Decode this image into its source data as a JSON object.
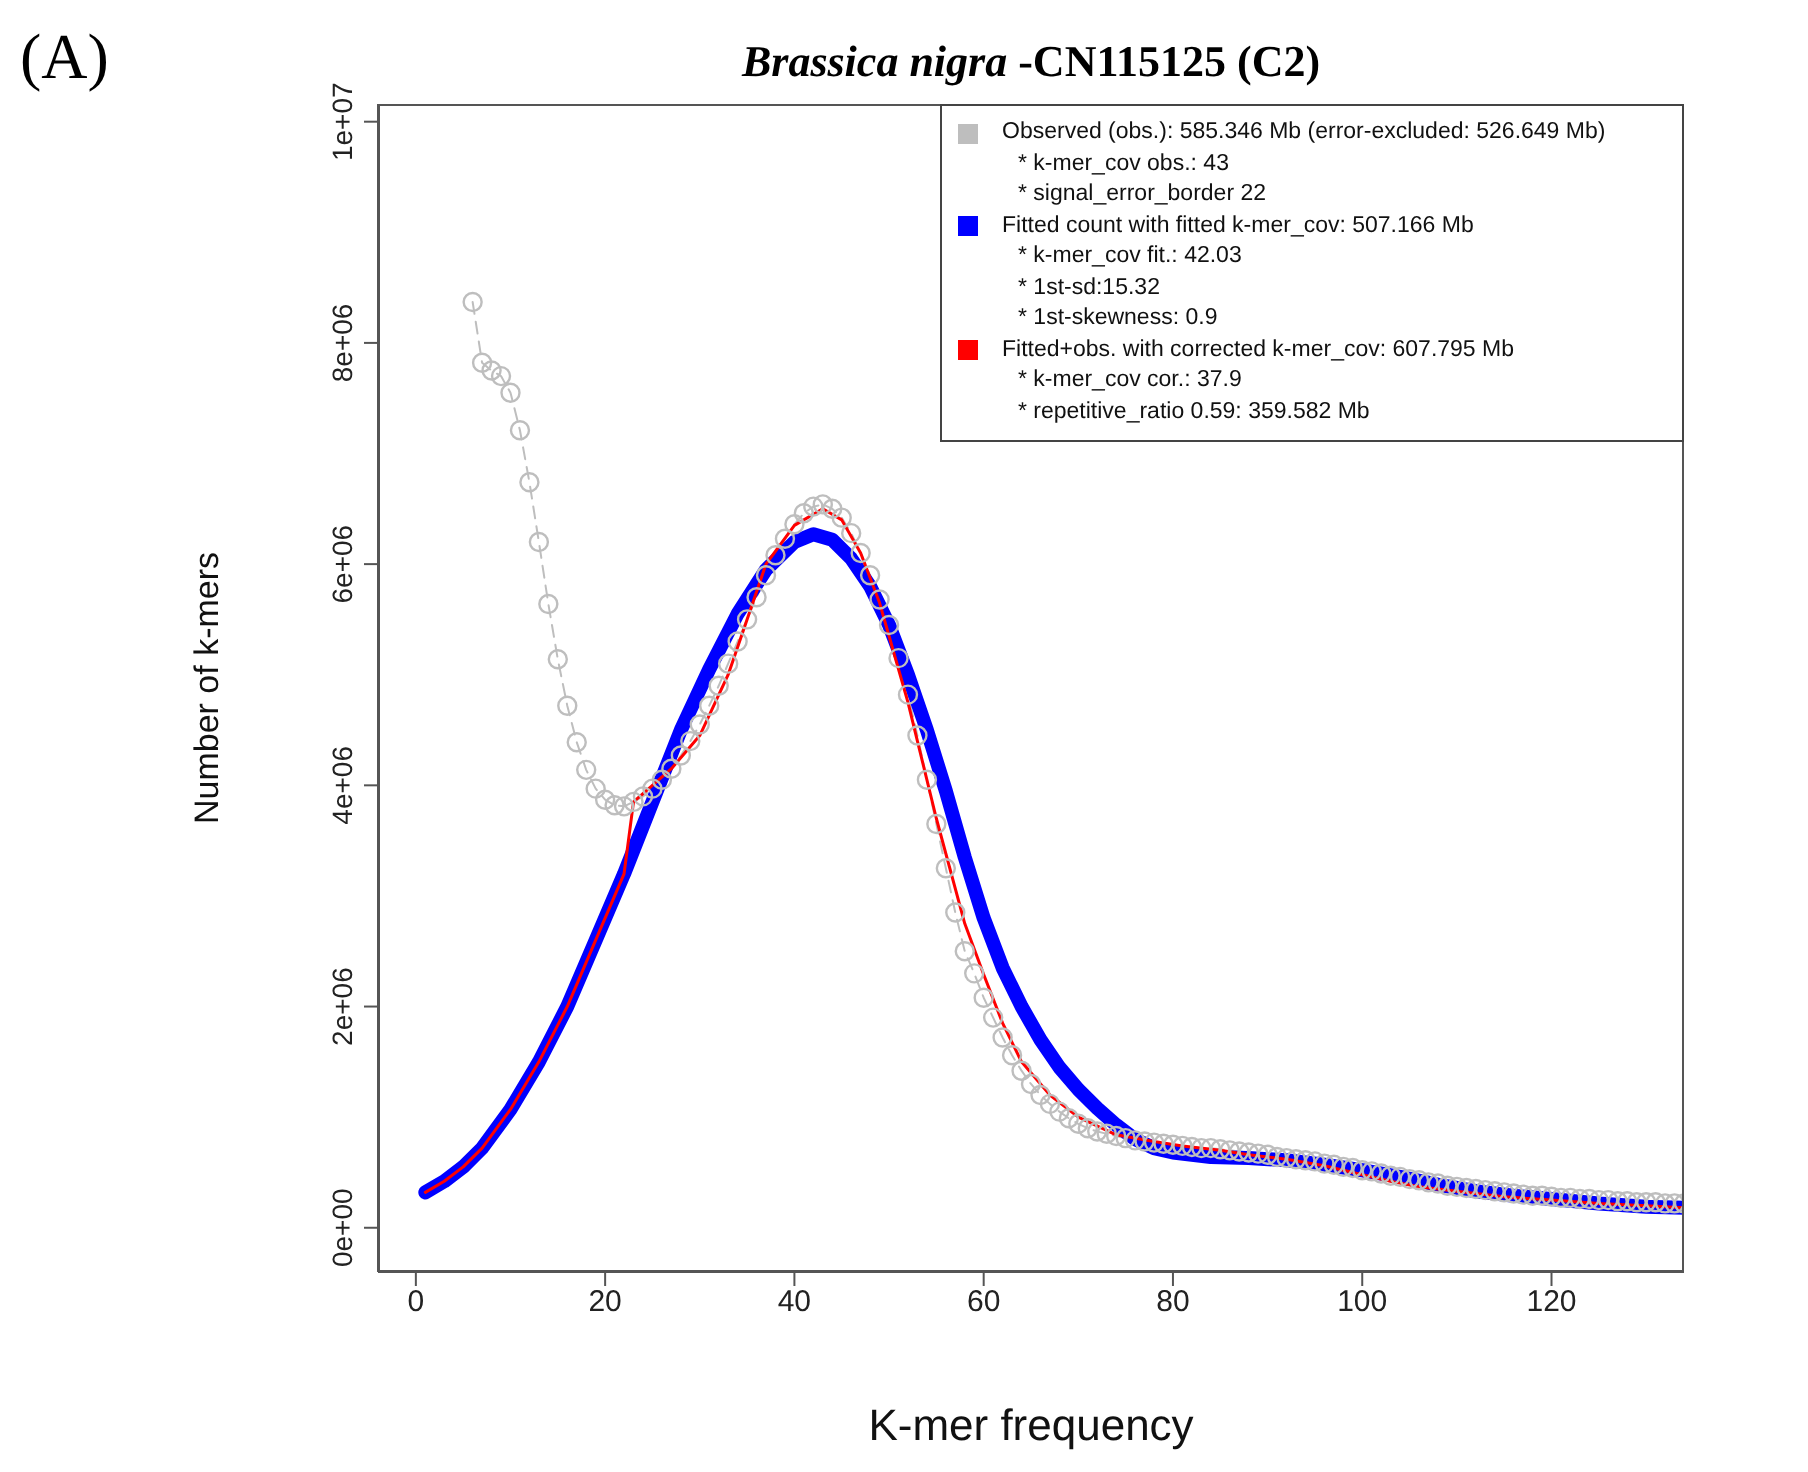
{
  "chart_data": {
    "type": "line",
    "title": "Brassica nigra -CN115125 (C2)",
    "xlabel": "K-mer frequency",
    "ylabel": "Number of k-mers",
    "annotations": [
      "(A)"
    ],
    "xlim": [
      -4,
      134
    ],
    "xticks": [
      0,
      20,
      40,
      60,
      80,
      100,
      120
    ],
    "ylim": [
      -400000,
      10160000
    ],
    "yticks": [
      {
        "value": 0,
        "label": "0e+00"
      },
      {
        "value": 2000000,
        "label": "2e+06"
      },
      {
        "value": 4000000,
        "label": "4e+06"
      },
      {
        "value": 6000000,
        "label": "6e+06"
      },
      {
        "value": 8000000,
        "label": "8e+06"
      },
      {
        "value": 10000000,
        "label": "1e+07"
      }
    ],
    "grid": false,
    "legend": "top right",
    "series": [
      {
        "name": "Observed (obs.): 585.346 Mb (error-excluded: 526.649 Mb)\n* k-mer_cov obs.: 43\n* signal_error_border 22",
        "color": "#bebebe",
        "marker": "circle",
        "line_style": "dashed",
        "x": [
          6,
          7,
          8,
          9,
          10,
          11,
          12,
          13,
          14,
          15,
          16,
          17,
          18,
          19,
          20,
          21,
          22,
          23,
          24,
          25,
          26,
          27,
          28,
          29,
          30,
          31,
          32,
          33,
          34,
          35,
          36,
          37,
          38,
          39,
          40,
          41,
          42,
          43,
          44,
          45,
          46,
          47,
          48,
          49,
          50,
          51,
          52,
          53,
          54,
          55,
          56,
          57,
          58,
          59,
          60,
          61,
          62,
          63,
          64,
          65,
          66,
          67,
          68,
          69,
          70,
          71,
          72,
          73,
          74,
          75,
          76,
          77,
          78,
          79,
          80,
          81,
          82,
          83,
          84,
          85,
          86,
          87,
          88,
          89,
          90,
          91,
          92,
          93,
          94,
          95,
          96,
          97,
          98,
          99,
          100,
          101,
          102,
          103,
          104,
          105,
          106,
          107,
          108,
          109,
          110,
          111,
          112,
          113,
          114,
          115,
          116,
          117,
          118,
          119,
          120,
          121,
          122,
          123,
          124,
          125,
          126,
          127,
          128,
          129,
          130,
          131,
          132,
          133,
          134
        ],
        "values": [
          8370000,
          7820000,
          7750000,
          7700000,
          7550000,
          7210000,
          6740000,
          6200000,
          5640000,
          5140000,
          4720000,
          4390000,
          4140000,
          3970000,
          3870000,
          3820000,
          3810000,
          3850000,
          3900000,
          3970000,
          4050000,
          4150000,
          4270000,
          4400000,
          4550000,
          4720000,
          4900000,
          5100000,
          5300000,
          5500000,
          5700000,
          5900000,
          6080000,
          6230000,
          6360000,
          6460000,
          6520000,
          6540000,
          6500000,
          6420000,
          6280000,
          6100000,
          5900000,
          5680000,
          5450000,
          5150000,
          4820000,
          4450000,
          4050000,
          3650000,
          3250000,
          2850000,
          2500000,
          2300000,
          2080000,
          1900000,
          1720000,
          1560000,
          1420000,
          1300000,
          1200000,
          1120000,
          1050000,
          990000,
          940000,
          900000,
          870000,
          850000,
          830000,
          810000,
          790000,
          780000,
          770000,
          760000,
          750000,
          740000,
          730000,
          720000,
          720000,
          710000,
          700000,
          690000,
          680000,
          670000,
          660000,
          640000,
          630000,
          620000,
          610000,
          600000,
          580000,
          570000,
          550000,
          540000,
          520000,
          510000,
          490000,
          470000,
          460000,
          440000,
          430000,
          410000,
          400000,
          380000,
          370000,
          360000,
          350000,
          340000,
          330000,
          320000,
          310000,
          300000,
          290000,
          290000,
          280000,
          270000,
          270000,
          260000,
          260000,
          250000,
          250000,
          240000,
          240000,
          230000,
          230000,
          230000,
          220000,
          220000,
          220000
        ]
      },
      {
        "name": "Fitted count with fitted k-mer_cov: 507.166 Mb\n* k-mer_cov fit.: 42.03\n* 1st-sd:15.32\n* 1st-skewness: 0.9",
        "color": "#0000ff",
        "marker": "none",
        "line_style": "solid",
        "x": [
          1,
          3,
          5,
          7,
          10,
          13,
          16,
          19,
          22,
          25,
          28,
          31,
          34,
          37,
          40,
          42,
          44,
          46,
          48,
          50,
          52,
          54,
          56,
          58,
          60,
          62,
          64,
          66,
          68,
          70,
          72,
          74,
          76,
          78,
          80,
          84,
          88,
          92,
          96,
          100,
          104,
          108,
          112,
          116,
          120,
          125,
          130,
          134
        ],
        "values": [
          320000,
          420000,
          550000,
          720000,
          1070000,
          1500000,
          2000000,
          2600000,
          3200000,
          3850000,
          4500000,
          5050000,
          5550000,
          5950000,
          6200000,
          6270000,
          6220000,
          6050000,
          5800000,
          5450000,
          5000000,
          4500000,
          3950000,
          3350000,
          2800000,
          2350000,
          2000000,
          1700000,
          1450000,
          1250000,
          1080000,
          930000,
          800000,
          720000,
          680000,
          640000,
          630000,
          610000,
          570000,
          520000,
          460000,
          390000,
          330000,
          290000,
          260000,
          220000,
          190000,
          180000
        ]
      },
      {
        "name": "Fitted+obs. with corrected k-mer_cov: 607.795 Mb\n* k-mer_cov cor.: 37.9\n* repetitive_ratio 0.59: 359.582 Mb",
        "color": "#ff0000",
        "marker": "none",
        "line_style": "solid",
        "x": [
          1,
          3,
          5,
          7,
          10,
          13,
          16,
          19,
          22,
          23,
          25,
          27,
          30,
          33,
          35,
          37,
          40,
          43,
          45,
          47,
          49,
          50,
          52,
          53,
          55,
          58,
          60,
          62,
          64,
          67,
          70,
          74,
          78,
          81,
          85,
          88,
          92,
          96,
          100,
          103,
          106,
          110,
          115,
          120,
          125,
          130,
          134
        ],
        "values": [
          320000,
          420000,
          550000,
          720000,
          1070000,
          1500000,
          2000000,
          2600000,
          3200000,
          3850000,
          4000000,
          4150000,
          4450000,
          5000000,
          5500000,
          6000000,
          6350000,
          6500000,
          6400000,
          6100000,
          5650000,
          5350000,
          4750000,
          4400000,
          3700000,
          2750000,
          2290000,
          1850000,
          1500000,
          1200000,
          1000000,
          840000,
          780000,
          740000,
          700000,
          660000,
          620000,
          560000,
          480000,
          420000,
          370000,
          330000,
          280000,
          250000,
          220000,
          200000,
          180000
        ]
      }
    ]
  }
}
